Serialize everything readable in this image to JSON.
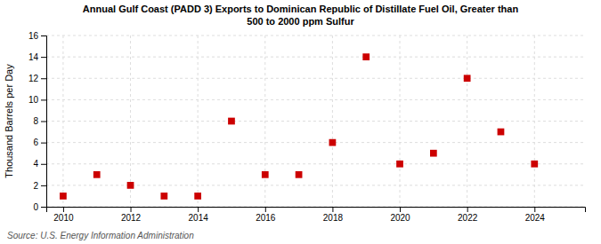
{
  "chart_data": {
    "type": "scatter",
    "title": "Annual Gulf Coast (PADD 3) Exports to Dominican Republic of Distillate Fuel Oil, Greater than\n500 to 2000 ppm Sulfur",
    "ylabel": "Thousand Barrels per Day",
    "annotations": [
      "Source: U.S. Energy Information Administration"
    ],
    "x": [
      2010,
      2011,
      2012,
      2013,
      2014,
      2015,
      2016,
      2017,
      2018,
      2019,
      2020,
      2021,
      2022,
      2023,
      2024
    ],
    "values": [
      1,
      3,
      2,
      1,
      1,
      8,
      3,
      3,
      6,
      14,
      4,
      5,
      12,
      7,
      4
    ],
    "xlim": [
      2009.5,
      2025.5
    ],
    "ylim": [
      0,
      16
    ],
    "xticks": [
      2010,
      2012,
      2014,
      2016,
      2018,
      2020,
      2022,
      2024
    ],
    "yticks": [
      0,
      2,
      4,
      6,
      8,
      10,
      12,
      14,
      16
    ],
    "color": "#cc0000",
    "marker": "square",
    "grid": true
  }
}
